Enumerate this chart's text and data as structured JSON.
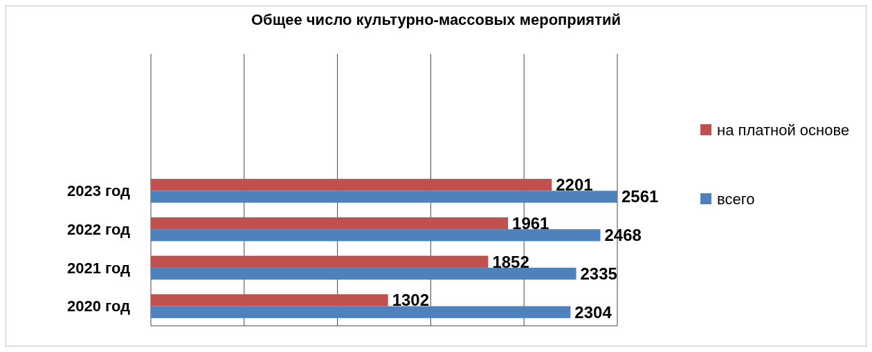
{
  "chart_data": {
    "type": "bar",
    "orientation": "horizontal",
    "title": "Общее число культурно-массовых мероприятий",
    "categories": [
      "2023 год",
      "2022 год",
      "2021 год",
      "2020 год"
    ],
    "series": [
      {
        "name": "на платной основе",
        "color": "#c0504d",
        "values": [
          2201,
          1961,
          1852,
          1302
        ]
      },
      {
        "name": "всего",
        "color": "#4f81bd",
        "values": [
          2561,
          2468,
          2335,
          2304
        ]
      }
    ],
    "data_labels": true,
    "grid": true,
    "legend": "right"
  }
}
